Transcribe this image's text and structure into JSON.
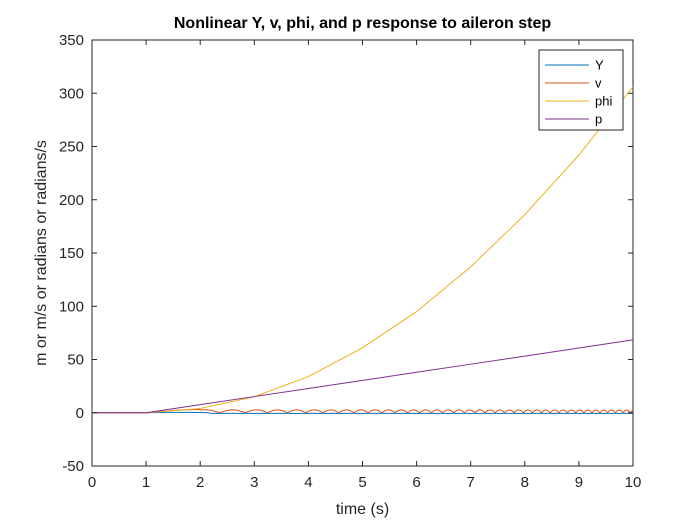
{
  "chart_data": {
    "type": "line",
    "title": "Nonlinear Y, v, phi, and p response to aileron step",
    "xlabel": "time (s)",
    "ylabel": "m or m/s or radians or radians/s",
    "xlim": [
      0,
      10
    ],
    "ylim": [
      -50,
      350
    ],
    "xticks": [
      0,
      1,
      2,
      3,
      4,
      5,
      6,
      7,
      8,
      9,
      10
    ],
    "yticks": [
      -50,
      0,
      50,
      100,
      150,
      200,
      250,
      300,
      350
    ],
    "xtick_labels": [
      "0",
      "1",
      "2",
      "3",
      "4",
      "5",
      "6",
      "7",
      "8",
      "9",
      "10"
    ],
    "ytick_labels": [
      "-50",
      "0",
      "50",
      "100",
      "150",
      "200",
      "250",
      "300",
      "350"
    ],
    "grid": false,
    "legend_position": "top-right",
    "step_time": 1,
    "series": [
      {
        "name": "Y",
        "color": "#0072BD",
        "x": [
          0,
          1,
          2,
          2.5,
          3,
          4,
          5,
          6,
          7,
          8,
          9,
          10
        ],
        "y": [
          0,
          0,
          0.3,
          -0.3,
          -0.5,
          -0.5,
          -0.5,
          -0.5,
          -0.5,
          -0.5,
          -0.5,
          -0.5
        ]
      },
      {
        "name": "v",
        "color": "#D95319",
        "x": [
          0,
          1,
          1.5,
          2,
          2.25,
          2.5,
          2.75,
          3,
          4,
          5,
          6,
          7,
          8,
          9,
          10
        ],
        "y": [
          0,
          0,
          1.5,
          3,
          0,
          2.5,
          0,
          2.5,
          2,
          2,
          2,
          2,
          2,
          2,
          3
        ]
      },
      {
        "name": "phi",
        "color": "#EDB120",
        "x": [
          0,
          1,
          2,
          3,
          4,
          5,
          6,
          7,
          8,
          9,
          10
        ],
        "y": [
          0,
          0,
          4,
          15,
          34,
          61,
          95,
          137,
          186,
          242,
          306
        ]
      },
      {
        "name": "p",
        "color": "#7E2F8E",
        "x": [
          0,
          1,
          2,
          3,
          4,
          5,
          6,
          7,
          8,
          9,
          10
        ],
        "y": [
          0,
          0,
          7.6,
          15.2,
          22.8,
          30.4,
          38,
          45.6,
          53.2,
          60.8,
          68.4
        ]
      }
    ]
  }
}
